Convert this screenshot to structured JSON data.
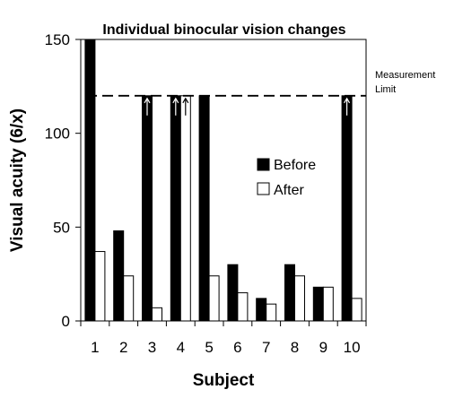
{
  "chart_data": {
    "type": "bar",
    "title": "Individual binocular vision changes",
    "xlabel": "Subject",
    "ylabel": "Visual acuity (6/x)",
    "categories": [
      "1",
      "2",
      "3",
      "4",
      "5",
      "6",
      "7",
      "8",
      "9",
      "10"
    ],
    "series": [
      {
        "name": "Before",
        "color": "#000000",
        "values": [
          152,
          48,
          120,
          120,
          120,
          30,
          12,
          30,
          18,
          120
        ]
      },
      {
        "name": "After",
        "color": "#ffffff",
        "values": [
          37,
          24,
          7,
          120,
          24,
          15,
          9,
          24,
          18,
          12
        ]
      }
    ],
    "ylim": [
      0,
      150
    ],
    "yticks": [
      0,
      50,
      100,
      150
    ],
    "grid": false,
    "legend_position": "right-middle",
    "measurement_limit": {
      "value": 120,
      "label_line1": "Measurement",
      "label_line2": "Limit"
    },
    "arrow_markers": [
      {
        "category": "3",
        "series": "Before"
      },
      {
        "category": "4",
        "series": "Before"
      },
      {
        "category": "4",
        "series": "After"
      },
      {
        "category": "10",
        "series": "Before"
      }
    ]
  }
}
